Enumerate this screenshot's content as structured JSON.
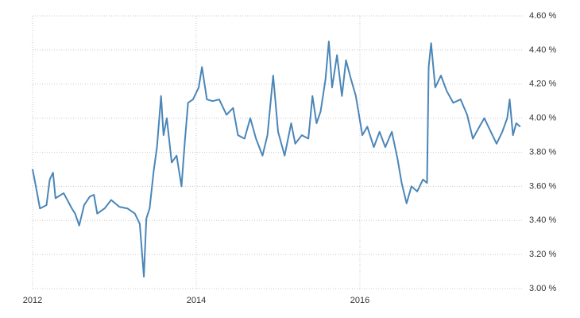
{
  "chart_data": {
    "type": "line",
    "color": "#4a86b8",
    "grid": true,
    "x": [
      2012.0,
      2012.04,
      2012.09,
      2012.17,
      2012.21,
      2012.25,
      2012.28,
      2012.38,
      2012.48,
      2012.52,
      2012.57,
      2012.63,
      2012.7,
      2012.75,
      2012.79,
      2012.88,
      2012.96,
      2013.06,
      2013.16,
      2013.25,
      2013.31,
      2013.36,
      2013.39,
      2013.43,
      2013.48,
      2013.52,
      2013.57,
      2013.6,
      2013.64,
      2013.7,
      2013.76,
      2013.82,
      2013.86,
      2013.9,
      2013.96,
      2014.03,
      2014.07,
      2014.13,
      2014.2,
      2014.28,
      2014.37,
      2014.45,
      2014.51,
      2014.59,
      2014.66,
      2014.73,
      2014.81,
      2014.87,
      2014.94,
      2015.0,
      2015.08,
      2015.16,
      2015.21,
      2015.29,
      2015.37,
      2015.42,
      2015.47,
      2015.52,
      2015.58,
      2015.62,
      2015.66,
      2015.72,
      2015.78,
      2015.83,
      2015.89,
      2015.95,
      2016.03,
      2016.09,
      2016.17,
      2016.24,
      2016.31,
      2016.39,
      2016.46,
      2016.51,
      2016.57,
      2016.63,
      2016.7,
      2016.77,
      2016.82,
      2016.84,
      2016.87,
      2016.92,
      2016.99,
      2017.06,
      2017.14,
      2017.23,
      2017.31,
      2017.38,
      2017.46,
      2017.52,
      2017.6,
      2017.67,
      2017.74,
      2017.8,
      2017.83,
      2017.87,
      2017.91,
      2017.96
    ],
    "values": [
      3.7,
      3.6,
      3.47,
      3.49,
      3.64,
      3.68,
      3.53,
      3.56,
      3.47,
      3.44,
      3.37,
      3.49,
      3.54,
      3.55,
      3.44,
      3.47,
      3.52,
      3.48,
      3.47,
      3.44,
      3.38,
      3.07,
      3.41,
      3.47,
      3.69,
      3.83,
      4.13,
      3.9,
      4.0,
      3.74,
      3.78,
      3.6,
      3.86,
      4.09,
      4.11,
      4.18,
      4.3,
      4.11,
      4.1,
      4.11,
      4.02,
      4.06,
      3.9,
      3.88,
      4.0,
      3.88,
      3.78,
      3.9,
      4.25,
      3.92,
      3.78,
      3.97,
      3.85,
      3.9,
      3.88,
      4.13,
      3.97,
      4.04,
      4.23,
      4.45,
      4.18,
      4.37,
      4.13,
      4.34,
      4.23,
      4.13,
      3.9,
      3.95,
      3.83,
      3.92,
      3.83,
      3.92,
      3.76,
      3.62,
      3.5,
      3.6,
      3.57,
      3.64,
      3.62,
      4.3,
      4.44,
      4.18,
      4.25,
      4.16,
      4.09,
      4.11,
      4.02,
      3.88,
      3.95,
      4.0,
      3.92,
      3.85,
      3.92,
      4.0,
      4.11,
      3.9,
      3.97,
      3.95
    ],
    "xlim": [
      2012,
      2018
    ],
    "xticks": [
      2012,
      2014,
      2016
    ],
    "ylim": [
      3.0,
      4.6
    ],
    "yticks": [
      {
        "value": 3.0,
        "label": "3.00 %"
      },
      {
        "value": 3.2,
        "label": "3.20 %"
      },
      {
        "value": 3.4,
        "label": "3.40 %"
      },
      {
        "value": 3.6,
        "label": "3.60 %"
      },
      {
        "value": 3.8,
        "label": "3.80 %"
      },
      {
        "value": 4.0,
        "label": "4.00 %"
      },
      {
        "value": 4.2,
        "label": "4.20 %"
      },
      {
        "value": 4.4,
        "label": "4.40 %"
      },
      {
        "value": 4.6,
        "label": "4.60 %"
      }
    ]
  }
}
